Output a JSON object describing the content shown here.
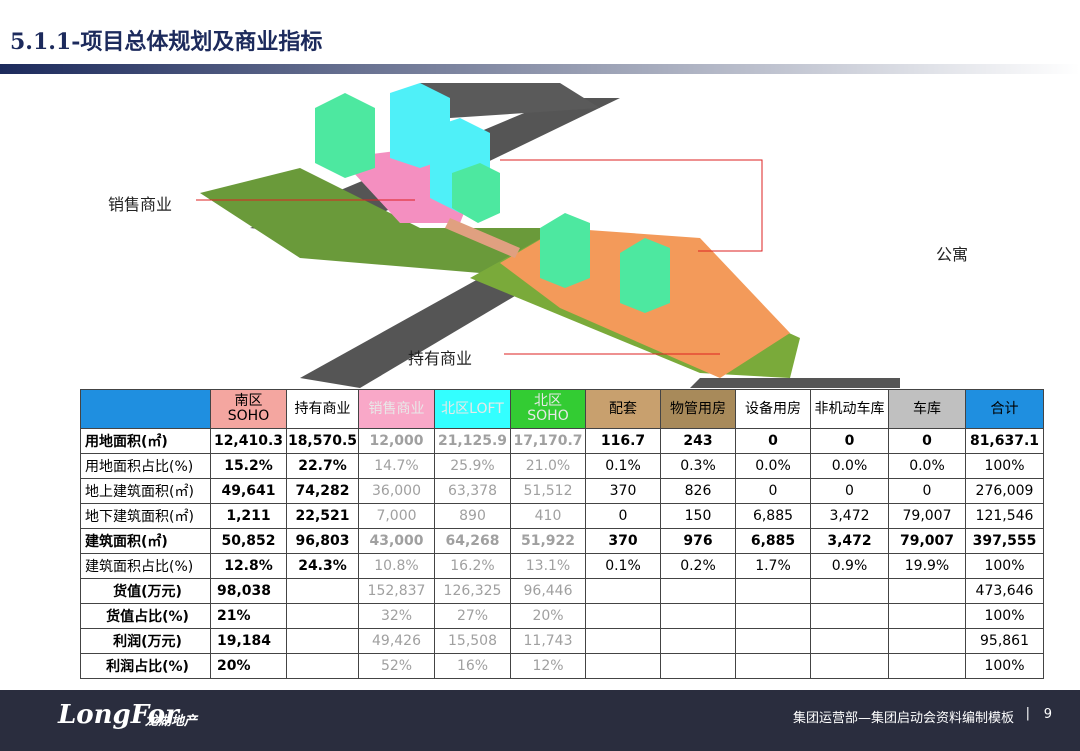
{
  "header": {
    "title": "5.1.1-项目总体规划及商业指标"
  },
  "image_labels": {
    "sales": "销售商业",
    "apartment": "公寓",
    "held": "持有商业"
  },
  "table": {
    "columns": [
      "南区\nSOHO",
      "持有商业",
      "销售商业",
      "北区LOFT",
      "北区\nSOHO",
      "配套",
      "物管用房",
      "设备用房",
      "非机动车库",
      "车库",
      "合计"
    ],
    "rows": [
      {
        "label": "用地面积(㎡)",
        "cells": [
          "12,410.3",
          "18,570.5",
          "12,000",
          "21,125.9",
          "17,170.7",
          "116.7",
          "243",
          "0",
          "0",
          "0",
          "81,637.1"
        ]
      },
      {
        "label": "用地面积占比(%)",
        "cells": [
          "15.2%",
          "22.7%",
          "14.7%",
          "25.9%",
          "21.0%",
          "0.1%",
          "0.3%",
          "0.0%",
          "0.0%",
          "0.0%",
          "100%"
        ]
      },
      {
        "label": "地上建筑面积(㎡)",
        "cells": [
          "49,641",
          "74,282",
          "36,000",
          "63,378",
          "51,512",
          "370",
          "826",
          "0",
          "0",
          "0",
          "276,009"
        ]
      },
      {
        "label": "地下建筑面积(㎡)",
        "cells": [
          "1,211",
          "22,521",
          "7,000",
          "890",
          "410",
          "0",
          "150",
          "6,885",
          "3,472",
          "79,007",
          "121,546"
        ]
      },
      {
        "label": "建筑面积(㎡)",
        "cells": [
          "50,852",
          "96,803",
          "43,000",
          "64,268",
          "51,922",
          "370",
          "976",
          "6,885",
          "3,472",
          "79,007",
          "397,555"
        ]
      },
      {
        "label": "建筑面积占比(%)",
        "cells": [
          "12.8%",
          "24.3%",
          "10.8%",
          "16.2%",
          "13.1%",
          "0.1%",
          "0.2%",
          "1.7%",
          "0.9%",
          "19.9%",
          "100%"
        ]
      },
      {
        "label": "货值(万元)",
        "cells": [
          "98,038",
          null,
          "152,837",
          "126,325",
          "96,446",
          null,
          null,
          null,
          null,
          null,
          "473,646"
        ]
      },
      {
        "label": "货值占比(%)",
        "cells": [
          "21%",
          null,
          "32%",
          "27%",
          "20%",
          null,
          null,
          null,
          null,
          null,
          "100%"
        ]
      },
      {
        "label": "利润(万元)",
        "cells": [
          "19,184",
          null,
          "49,426",
          "15,508",
          "11,743",
          null,
          null,
          null,
          null,
          null,
          "95,861"
        ]
      },
      {
        "label": "利润占比(%)",
        "cells": [
          "20%",
          null,
          "52%",
          "16%",
          "12%",
          null,
          null,
          null,
          null,
          null,
          "100%"
        ]
      }
    ]
  },
  "footer": {
    "logo": "LongFor",
    "logo_cn": "龙湖地产",
    "text": "集团运营部—集团启动会资料编制模板",
    "page": "9"
  }
}
